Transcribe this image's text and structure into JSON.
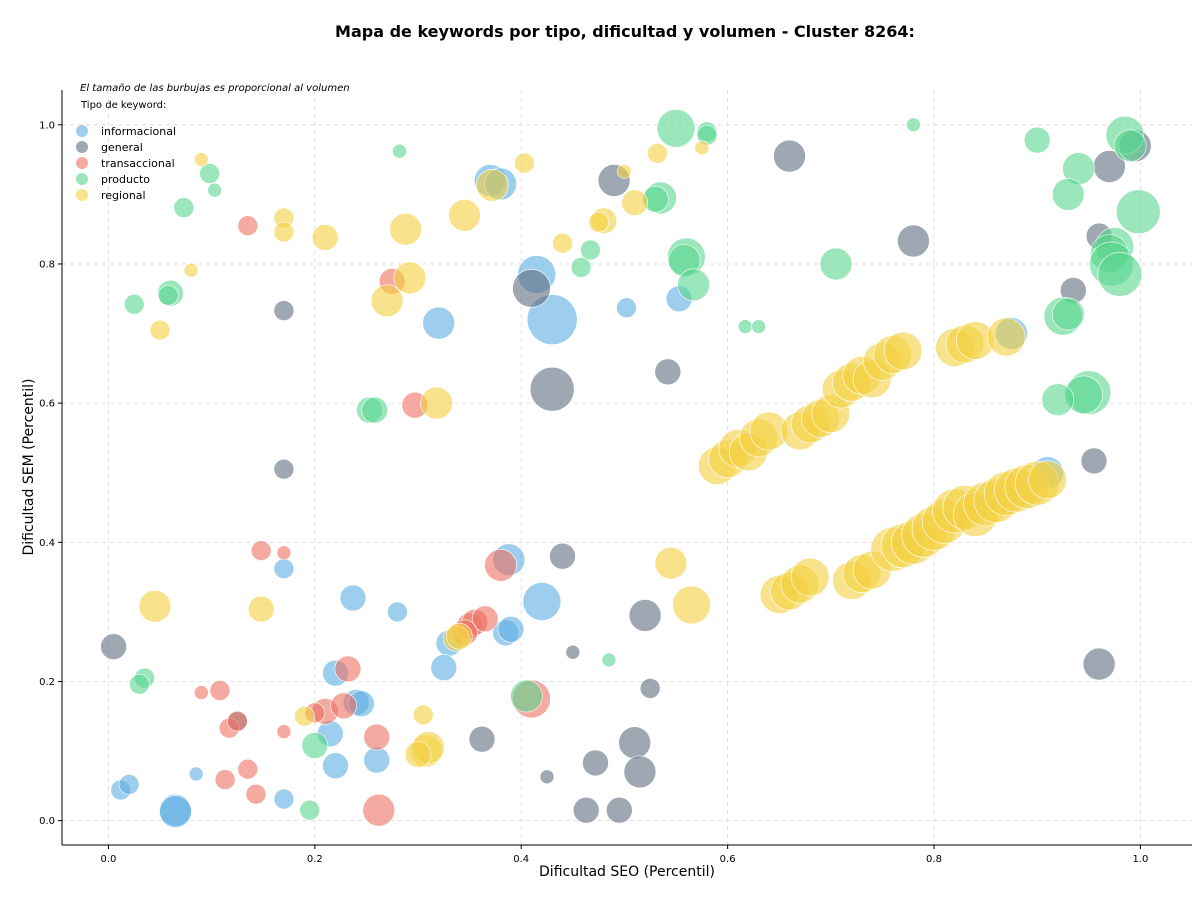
{
  "chart_data": {
    "type": "scatter",
    "title": "Mapa de keywords por tipo, dificultad y volumen - Cluster 8264:",
    "xlabel": "Dificultad SEO (Percentil)",
    "ylabel": "Dificultad SEM (Percentil)",
    "note": "El tamaño de las burbujas es proporcional al volumen",
    "legend_title": "Tipo de keyword:",
    "legend_position": "top-left",
    "grid": true,
    "xlim": [
      -0.045,
      1.05
    ],
    "ylim": [
      -0.035,
      1.05
    ],
    "x_ticks": [
      "0.0",
      "0.2",
      "0.4",
      "0.6",
      "0.8",
      "1.0"
    ],
    "y_ticks": [
      "0.0",
      "0.2",
      "0.4",
      "0.6",
      "0.8",
      "1.0"
    ],
    "series": [
      {
        "name": "informacional",
        "color": "#5DADE2",
        "points": [
          [
            0.37,
            0.92,
            4
          ],
          [
            0.38,
            0.915,
            4
          ],
          [
            0.415,
            0.785,
            5
          ],
          [
            0.43,
            0.72,
            7
          ],
          [
            0.32,
            0.715,
            4
          ],
          [
            0.502,
            0.737,
            2
          ],
          [
            0.553,
            0.75,
            3
          ],
          [
            0.875,
            0.7,
            4
          ],
          [
            0.91,
            0.5,
            4
          ],
          [
            0.388,
            0.375,
            4
          ],
          [
            0.42,
            0.315,
            5
          ],
          [
            0.385,
            0.27,
            3
          ],
          [
            0.39,
            0.275,
            3
          ],
          [
            0.237,
            0.32,
            3
          ],
          [
            0.28,
            0.3,
            2
          ],
          [
            0.17,
            0.362,
            2
          ],
          [
            0.33,
            0.255,
            3
          ],
          [
            0.325,
            0.22,
            3
          ],
          [
            0.22,
            0.212,
            3
          ],
          [
            0.24,
            0.17,
            3
          ],
          [
            0.245,
            0.168,
            3
          ],
          [
            0.215,
            0.125,
            3
          ],
          [
            0.26,
            0.087,
            3
          ],
          [
            0.22,
            0.079,
            3
          ],
          [
            0.065,
            0.015,
            4
          ],
          [
            0.065,
            0.013,
            4
          ],
          [
            0.012,
            0.044,
            2
          ],
          [
            0.02,
            0.052,
            2
          ],
          [
            0.085,
            0.067,
            1
          ],
          [
            0.17,
            0.031,
            2
          ]
        ]
      },
      {
        "name": "general",
        "color": "#5D6D7E",
        "points": [
          [
            0.66,
            0.955,
            4
          ],
          [
            0.97,
            0.94,
            4
          ],
          [
            0.995,
            0.97,
            4
          ],
          [
            0.49,
            0.92,
            4
          ],
          [
            0.41,
            0.765,
            5
          ],
          [
            0.78,
            0.833,
            4
          ],
          [
            0.96,
            0.84,
            3
          ],
          [
            0.935,
            0.762,
            3
          ],
          [
            0.17,
            0.733,
            2
          ],
          [
            0.43,
            0.62,
            6
          ],
          [
            0.542,
            0.645,
            3
          ],
          [
            0.955,
            0.517,
            3
          ],
          [
            0.17,
            0.505,
            2
          ],
          [
            0.44,
            0.38,
            3
          ],
          [
            0.52,
            0.295,
            4
          ],
          [
            0.005,
            0.25,
            3
          ],
          [
            0.45,
            0.242,
            1
          ],
          [
            0.525,
            0.19,
            2
          ],
          [
            0.362,
            0.117,
            3
          ],
          [
            0.51,
            0.112,
            4
          ],
          [
            0.96,
            0.225,
            4
          ],
          [
            0.125,
            0.142,
            2
          ],
          [
            0.472,
            0.083,
            3
          ],
          [
            0.425,
            0.063,
            1
          ],
          [
            0.515,
            0.07,
            4
          ],
          [
            0.463,
            0.015,
            3
          ],
          [
            0.495,
            0.015,
            3
          ]
        ]
      },
      {
        "name": "transaccional",
        "color": "#EC7063",
        "points": [
          [
            0.135,
            0.855,
            2
          ],
          [
            0.275,
            0.775,
            3
          ],
          [
            0.297,
            0.597,
            3
          ],
          [
            0.148,
            0.388,
            2
          ],
          [
            0.17,
            0.385,
            1
          ],
          [
            0.35,
            0.28,
            3
          ],
          [
            0.355,
            0.285,
            3
          ],
          [
            0.365,
            0.29,
            3
          ],
          [
            0.345,
            0.27,
            3
          ],
          [
            0.38,
            0.367,
            4
          ],
          [
            0.41,
            0.175,
            5
          ],
          [
            0.232,
            0.218,
            3
          ],
          [
            0.21,
            0.157,
            3
          ],
          [
            0.228,
            0.165,
            3
          ],
          [
            0.2,
            0.155,
            2
          ],
          [
            0.117,
            0.133,
            2
          ],
          [
            0.108,
            0.187,
            2
          ],
          [
            0.09,
            0.184,
            1
          ],
          [
            0.125,
            0.143,
            2
          ],
          [
            0.26,
            0.12,
            3
          ],
          [
            0.17,
            0.128,
            1
          ],
          [
            0.135,
            0.074,
            2
          ],
          [
            0.113,
            0.059,
            2
          ],
          [
            0.143,
            0.038,
            2
          ],
          [
            0.262,
            0.015,
            4
          ]
        ]
      },
      {
        "name": "producto",
        "color": "#58D68D",
        "points": [
          [
            0.55,
            0.995,
            5
          ],
          [
            0.58,
            0.99,
            2
          ],
          [
            0.58,
            0.985,
            2
          ],
          [
            0.78,
            1.0,
            1
          ],
          [
            0.9,
            0.978,
            3
          ],
          [
            0.985,
            0.985,
            5
          ],
          [
            0.99,
            0.97,
            4
          ],
          [
            0.94,
            0.937,
            4
          ],
          [
            0.93,
            0.9,
            4
          ],
          [
            0.998,
            0.875,
            6
          ],
          [
            0.975,
            0.825,
            5
          ],
          [
            0.97,
            0.815,
            5
          ],
          [
            0.972,
            0.8,
            6
          ],
          [
            0.98,
            0.785,
            6
          ],
          [
            0.925,
            0.725,
            5
          ],
          [
            0.93,
            0.728,
            4
          ],
          [
            0.95,
            0.615,
            6
          ],
          [
            0.945,
            0.612,
            5
          ],
          [
            0.92,
            0.605,
            4
          ],
          [
            0.282,
            0.962,
            1
          ],
          [
            0.098,
            0.93,
            2
          ],
          [
            0.103,
            0.906,
            1
          ],
          [
            0.073,
            0.881,
            2
          ],
          [
            0.535,
            0.895,
            4
          ],
          [
            0.53,
            0.893,
            3
          ],
          [
            0.56,
            0.81,
            5
          ],
          [
            0.558,
            0.805,
            4
          ],
          [
            0.567,
            0.77,
            4
          ],
          [
            0.705,
            0.8,
            4
          ],
          [
            0.458,
            0.795,
            2
          ],
          [
            0.467,
            0.82,
            2
          ],
          [
            0.617,
            0.71,
            1
          ],
          [
            0.63,
            0.71,
            1
          ],
          [
            0.025,
            0.742,
            2
          ],
          [
            0.06,
            0.758,
            3
          ],
          [
            0.058,
            0.755,
            2
          ],
          [
            0.253,
            0.59,
            3
          ],
          [
            0.258,
            0.59,
            3
          ],
          [
            0.485,
            0.231,
            1
          ],
          [
            0.035,
            0.205,
            2
          ],
          [
            0.03,
            0.196,
            2
          ],
          [
            0.2,
            0.108,
            3
          ],
          [
            0.405,
            0.179,
            4
          ],
          [
            0.195,
            0.015,
            2
          ]
        ]
      },
      {
        "name": "regional",
        "color": "#F4D03F",
        "points": [
          [
            0.09,
            0.95,
            1
          ],
          [
            0.08,
            0.791,
            1
          ],
          [
            0.17,
            0.866,
            2
          ],
          [
            0.17,
            0.846,
            2
          ],
          [
            0.21,
            0.838,
            3
          ],
          [
            0.288,
            0.85,
            4
          ],
          [
            0.292,
            0.78,
            4
          ],
          [
            0.27,
            0.747,
            4
          ],
          [
            0.05,
            0.705,
            2
          ],
          [
            0.345,
            0.87,
            4
          ],
          [
            0.372,
            0.913,
            4
          ],
          [
            0.403,
            0.945,
            2
          ],
          [
            0.44,
            0.83,
            2
          ],
          [
            0.48,
            0.862,
            3
          ],
          [
            0.475,
            0.86,
            2
          ],
          [
            0.51,
            0.888,
            3
          ],
          [
            0.5,
            0.933,
            1
          ],
          [
            0.532,
            0.959,
            2
          ],
          [
            0.575,
            0.967,
            1
          ],
          [
            0.318,
            0.6,
            4
          ],
          [
            0.045,
            0.308,
            4
          ],
          [
            0.148,
            0.304,
            3
          ],
          [
            0.545,
            0.37,
            4
          ],
          [
            0.565,
            0.31,
            5
          ],
          [
            0.305,
            0.152,
            2
          ],
          [
            0.308,
            0.1,
            4
          ],
          [
            0.31,
            0.105,
            4
          ],
          [
            0.3,
            0.095,
            3
          ],
          [
            0.337,
            0.262,
            3
          ],
          [
            0.34,
            0.265,
            3
          ],
          [
            0.19,
            0.15,
            2
          ],
          [
            0.59,
            0.51,
            5
          ],
          [
            0.6,
            0.52,
            5
          ],
          [
            0.61,
            0.535,
            5
          ],
          [
            0.62,
            0.53,
            5
          ],
          [
            0.63,
            0.55,
            5
          ],
          [
            0.64,
            0.56,
            5
          ],
          [
            0.67,
            0.56,
            5
          ],
          [
            0.68,
            0.57,
            5
          ],
          [
            0.69,
            0.578,
            5
          ],
          [
            0.7,
            0.585,
            5
          ],
          [
            0.71,
            0.62,
            5
          ],
          [
            0.72,
            0.63,
            5
          ],
          [
            0.73,
            0.64,
            5
          ],
          [
            0.74,
            0.635,
            5
          ],
          [
            0.75,
            0.66,
            5
          ],
          [
            0.76,
            0.67,
            5
          ],
          [
            0.77,
            0.675,
            5
          ],
          [
            0.82,
            0.68,
            5
          ],
          [
            0.83,
            0.685,
            5
          ],
          [
            0.84,
            0.69,
            5
          ],
          [
            0.87,
            0.695,
            5
          ],
          [
            0.65,
            0.325,
            5
          ],
          [
            0.66,
            0.33,
            5
          ],
          [
            0.67,
            0.34,
            5
          ],
          [
            0.68,
            0.35,
            5
          ],
          [
            0.72,
            0.345,
            5
          ],
          [
            0.73,
            0.355,
            5
          ],
          [
            0.74,
            0.36,
            5
          ],
          [
            0.76,
            0.39,
            6
          ],
          [
            0.77,
            0.395,
            6
          ],
          [
            0.78,
            0.4,
            6
          ],
          [
            0.79,
            0.41,
            6
          ],
          [
            0.8,
            0.42,
            6
          ],
          [
            0.81,
            0.43,
            6
          ],
          [
            0.82,
            0.445,
            6
          ],
          [
            0.83,
            0.45,
            6
          ],
          [
            0.84,
            0.44,
            6
          ],
          [
            0.85,
            0.455,
            6
          ],
          [
            0.86,
            0.46,
            6
          ],
          [
            0.87,
            0.47,
            6
          ],
          [
            0.88,
            0.475,
            6
          ],
          [
            0.89,
            0.48,
            6
          ],
          [
            0.9,
            0.485,
            6
          ],
          [
            0.91,
            0.49,
            5
          ]
        ]
      }
    ]
  }
}
